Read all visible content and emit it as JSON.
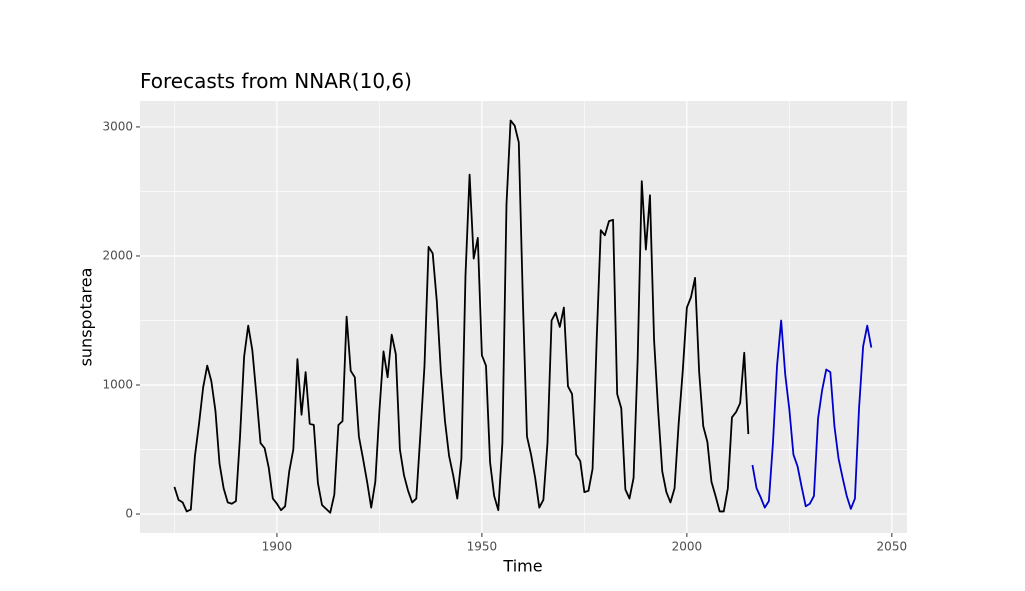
{
  "chart_data": {
    "type": "line",
    "title": "Forecasts from NNAR(10,6)",
    "x_label": "Time",
    "y_label": "sunspotarea",
    "xlim": [
      1866.6,
      2053.7
    ],
    "ylim": [
      -147,
      3201
    ],
    "xticks": [
      1900,
      1950,
      2000,
      2050
    ],
    "yticks": [
      0,
      1000,
      2000,
      3000
    ],
    "x_minor_breaks": [
      1875,
      1925,
      1975,
      2025
    ],
    "y_minor_breaks": [
      500,
      1500,
      2500
    ],
    "grid": true,
    "series": [
      {
        "name": "sunspotarea",
        "color": "#000000",
        "x": [
          1875,
          1876,
          1877,
          1878,
          1879,
          1880,
          1881,
          1882,
          1883,
          1884,
          1885,
          1886,
          1887,
          1888,
          1889,
          1890,
          1891,
          1892,
          1893,
          1894,
          1895,
          1896,
          1897,
          1898,
          1899,
          1900,
          1901,
          1902,
          1903,
          1904,
          1905,
          1906,
          1907,
          1908,
          1909,
          1910,
          1911,
          1912,
          1913,
          1914,
          1915,
          1916,
          1917,
          1918,
          1919,
          1920,
          1921,
          1922,
          1923,
          1924,
          1925,
          1926,
          1927,
          1928,
          1929,
          1930,
          1931,
          1932,
          1933,
          1934,
          1935,
          1936,
          1937,
          1938,
          1939,
          1940,
          1941,
          1942,
          1943,
          1944,
          1945,
          1946,
          1947,
          1948,
          1949,
          1950,
          1951,
          1952,
          1953,
          1954,
          1955,
          1956,
          1957,
          1958,
          1959,
          1960,
          1961,
          1962,
          1963,
          1964,
          1965,
          1966,
          1967,
          1968,
          1969,
          1970,
          1971,
          1972,
          1973,
          1974,
          1975,
          1976,
          1977,
          1978,
          1979,
          1980,
          1981,
          1982,
          1983,
          1984,
          1985,
          1986,
          1987,
          1988,
          1989,
          1990,
          1991,
          1992,
          1993,
          1994,
          1995,
          1996,
          1997,
          1998,
          1999,
          2000,
          2001,
          2002,
          2003,
          2004,
          2005,
          2006,
          2007,
          2008,
          2009,
          2010,
          2011,
          2012,
          2013,
          2014,
          2015
        ],
        "values": [
          210,
          110,
          90,
          20,
          35,
          450,
          700,
          980,
          1150,
          1030,
          800,
          390,
          200,
          90,
          80,
          100,
          600,
          1220,
          1460,
          1270,
          920,
          550,
          510,
          360,
          120,
          80,
          30,
          60,
          330,
          500,
          1200,
          770,
          1100,
          700,
          690,
          240,
          70,
          40,
          10,
          150,
          690,
          720,
          1530,
          1110,
          1060,
          600,
          430,
          250,
          50,
          250,
          800,
          1260,
          1060,
          1390,
          1240,
          500,
          300,
          180,
          90,
          120,
          620,
          1150,
          2070,
          2020,
          1650,
          1100,
          720,
          450,
          300,
          120,
          430,
          1850,
          2630,
          1980,
          2140,
          1230,
          1150,
          400,
          140,
          30,
          550,
          2400,
          3050,
          3010,
          2880,
          1650,
          600,
          460,
          280,
          50,
          110,
          550,
          1500,
          1560,
          1450,
          1600,
          990,
          930,
          460,
          410,
          170,
          180,
          350,
          1350,
          2200,
          2160,
          2270,
          2280,
          930,
          820,
          190,
          120,
          280,
          1200,
          2580,
          2050,
          2470,
          1350,
          800,
          330,
          170,
          90,
          200,
          700,
          1110,
          1600,
          1680,
          1830,
          1100,
          680,
          560,
          250,
          140,
          20,
          20,
          200,
          750,
          790,
          860,
          1250,
          620
        ]
      },
      {
        "name": "Forecast",
        "color": "#0000cc",
        "x": [
          2016,
          2017,
          2018,
          2019,
          2020,
          2021,
          2022,
          2023,
          2024,
          2025,
          2026,
          2027,
          2028,
          2029,
          2030,
          2031,
          2032,
          2033,
          2034,
          2035,
          2036,
          2037,
          2038,
          2039,
          2040,
          2041,
          2042,
          2043,
          2044,
          2045
        ],
        "values": [
          380,
          200,
          130,
          50,
          100,
          550,
          1150,
          1500,
          1080,
          810,
          460,
          370,
          210,
          60,
          80,
          140,
          740,
          960,
          1120,
          1100,
          680,
          430,
          280,
          140,
          40,
          120,
          820,
          1300,
          1460,
          1290
        ]
      }
    ]
  }
}
